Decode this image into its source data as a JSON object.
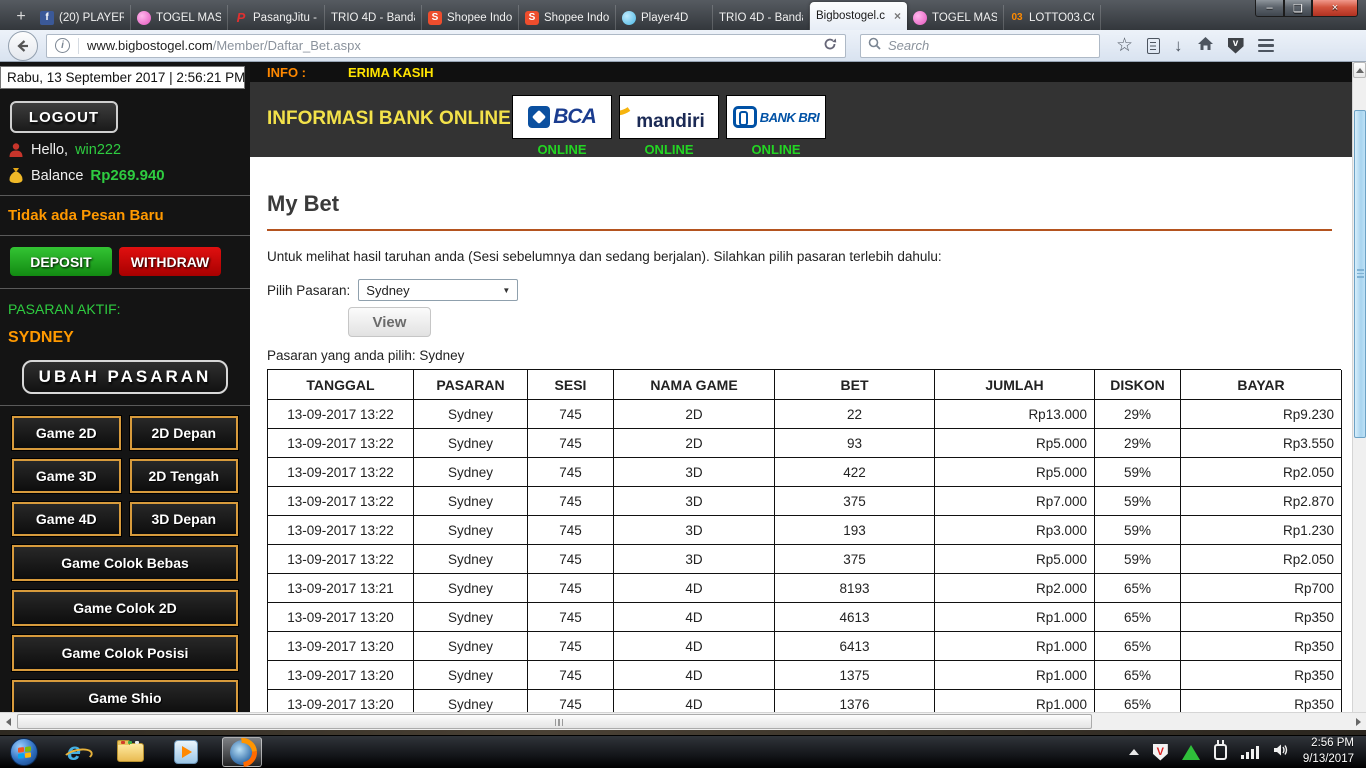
{
  "browser": {
    "window_controls": {
      "minimize": "–",
      "maximize": "❏",
      "close": "×"
    },
    "tabs": [
      {
        "label": "(20) PLAYER",
        "icon": "facebook"
      },
      {
        "label": "TOGEL MAS",
        "icon": "togel"
      },
      {
        "label": "PasangJitu -",
        "icon": "pasangjitu"
      },
      {
        "label": "TRIO 4D - Banda",
        "icon": "none"
      },
      {
        "label": "Shopee Indo",
        "icon": "shopee"
      },
      {
        "label": "Shopee Indo",
        "icon": "shopee"
      },
      {
        "label": "Player4D",
        "icon": "player4d"
      },
      {
        "label": "TRIO 4D - Banda",
        "icon": "none"
      },
      {
        "label": "Bigbostogel.c",
        "icon": "none",
        "active": true,
        "close": "×"
      },
      {
        "label": "TOGEL MAS",
        "icon": "togel"
      },
      {
        "label": "LOTTO03.CC",
        "icon": "lotto"
      }
    ],
    "new_tab": "+",
    "url_domain": "www.bigbostogel.com",
    "url_path": "/Member/Daftar_Bet.aspx",
    "search_placeholder": "Search",
    "info_icon_glyph": "i"
  },
  "sidebar": {
    "datetime": "Rabu, 13 September 2017 | 2:56:21 PM",
    "logout_label": "LOGOUT",
    "hello_label": "Hello,",
    "username": "win222",
    "balance_label": "Balance",
    "balance_value": "Rp269.940",
    "message": "Tidak ada Pesan Baru",
    "deposit_label": "DEPOSIT",
    "withdraw_label": "WITHDRAW",
    "pasaran_aktif_label": "PASARAN AKTIF:",
    "pasaran_aktif_value": "SYDNEY",
    "ubah_pasaran_label": "UBAH  PASARAN",
    "games_grid": [
      "Game 2D",
      "2D Depan",
      "Game 3D",
      "2D Tengah",
      "Game 4D",
      "3D Depan"
    ],
    "games_full": [
      "Game Colok Bebas",
      "Game Colok 2D",
      "Game Colok Posisi",
      "Game Shio"
    ]
  },
  "header": {
    "info_label": "INFO :",
    "info_marquee": "ERIMA KASIH",
    "bank_title": "INFORMASI BANK ONLINE",
    "banks": [
      {
        "key": "bca",
        "name": "BCA",
        "status": "ONLINE"
      },
      {
        "key": "mandiri",
        "name": "mandiri",
        "status": "ONLINE"
      },
      {
        "key": "bri",
        "name": "BANK BRI",
        "status": "ONLINE"
      }
    ]
  },
  "main": {
    "title": "My Bet",
    "description": "Untuk melihat hasil taruhan anda (Sesi sebelumnya dan sedang berjalan). Silahkan pilih pasaran terlebih dahulu:",
    "select_label": "Pilih Pasaran:",
    "select_value": "Sydney",
    "view_label": "View",
    "chosen_text": "Pasaran yang anda pilih: Sydney",
    "table": {
      "headers": [
        "TANGGAL",
        "PASARAN",
        "SESI",
        "NAMA GAME",
        "BET",
        "JUMLAH",
        "DISKON",
        "BAYAR"
      ],
      "rows": [
        [
          "13-09-2017 13:22",
          "Sydney",
          "745",
          "2D",
          "22",
          "Rp13.000",
          "29%",
          "Rp9.230"
        ],
        [
          "13-09-2017 13:22",
          "Sydney",
          "745",
          "2D",
          "93",
          "Rp5.000",
          "29%",
          "Rp3.550"
        ],
        [
          "13-09-2017 13:22",
          "Sydney",
          "745",
          "3D",
          "422",
          "Rp5.000",
          "59%",
          "Rp2.050"
        ],
        [
          "13-09-2017 13:22",
          "Sydney",
          "745",
          "3D",
          "375",
          "Rp7.000",
          "59%",
          "Rp2.870"
        ],
        [
          "13-09-2017 13:22",
          "Sydney",
          "745",
          "3D",
          "193",
          "Rp3.000",
          "59%",
          "Rp1.230"
        ],
        [
          "13-09-2017 13:22",
          "Sydney",
          "745",
          "3D",
          "375",
          "Rp5.000",
          "59%",
          "Rp2.050"
        ],
        [
          "13-09-2017 13:21",
          "Sydney",
          "745",
          "4D",
          "8193",
          "Rp2.000",
          "65%",
          "Rp700"
        ],
        [
          "13-09-2017 13:20",
          "Sydney",
          "745",
          "4D",
          "4613",
          "Rp1.000",
          "65%",
          "Rp350"
        ],
        [
          "13-09-2017 13:20",
          "Sydney",
          "745",
          "4D",
          "6413",
          "Rp1.000",
          "65%",
          "Rp350"
        ],
        [
          "13-09-2017 13:20",
          "Sydney",
          "745",
          "4D",
          "1375",
          "Rp1.000",
          "65%",
          "Rp350"
        ],
        [
          "13-09-2017 13:20",
          "Sydney",
          "745",
          "4D",
          "1376",
          "Rp1.000",
          "65%",
          "Rp350"
        ]
      ]
    }
  },
  "taskbar": {
    "clock_time": "2:56 PM",
    "clock_date": "9/13/2017"
  },
  "colors": {
    "accent_orange": "#ff9900",
    "accent_green": "#2ecc40",
    "deposit_green": "#1fa81f",
    "withdraw_red": "#c40000",
    "bank_title_yellow": "#f3e24a",
    "online_green": "#23d523",
    "title_rule_orange": "#b4531f",
    "game_button_border": "#d89b3c"
  }
}
